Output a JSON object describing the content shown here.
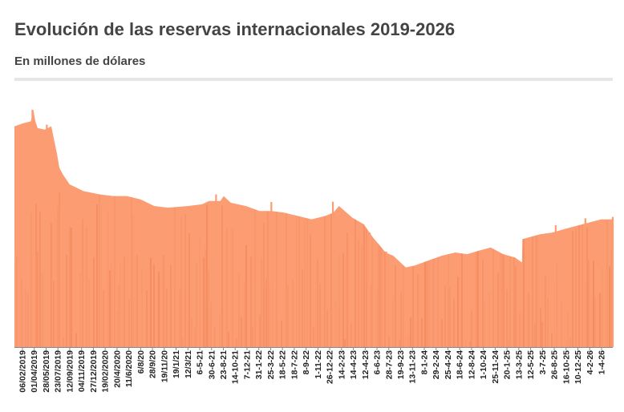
{
  "header": {
    "title": "Evolución de las reservas internacionales 2019-2026",
    "subtitle": "En millones de dólares"
  },
  "chart_data": {
    "type": "area",
    "title": "Evolución de las reservas internacionales 2019-2026",
    "subtitle": "En millones de dólares",
    "xlabel": "",
    "ylabel": "",
    "ylim": [
      0,
      78000
    ],
    "grid": false,
    "legend": "none",
    "colors": {
      "area": "#fb9c73",
      "stripe": "#f07c4c",
      "axis": "#888888"
    },
    "x_range": [
      "2019-02-06",
      "2026-05-22"
    ],
    "x_ticks": [
      "06/02/2019",
      "01/04/2019",
      "28/05/2019",
      "23/07/2019",
      "12/09/2019",
      "04/11/2019",
      "27/12/2019",
      "19/02/2020",
      "20/4/2020",
      "11/6/2020",
      "6/8/20",
      "28/9/20",
      "19/11/20",
      "19/1/21",
      "12/3/21",
      "6-5-21",
      "30-6-21",
      "23-8-21",
      "14-10-21",
      "7-12-21",
      "31-1-22",
      "25-3-22",
      "18-5-22",
      "18-7-22",
      "8-9-22",
      "1-11-22",
      "26-12-22",
      "14-2-23",
      "14-4-23",
      "12-4-23",
      "6-6-23",
      "28-7-23",
      "19-9-23",
      "13-11-23",
      "8-1-24",
      "29-2-24",
      "25-4-24",
      "18-6-24",
      "12-8-24",
      "1-10-24",
      "25-11-24",
      "20-1-25",
      "13-3-25",
      "12-5-25",
      "3-7-25",
      "26-8-25",
      "16-10-25",
      "10-12-25",
      "4-2-26",
      "1-4-26"
    ],
    "x": [
      "2019-02-06",
      "2019-03-20",
      "2019-04-20",
      "2019-05-01",
      "2019-05-10",
      "2019-05-20",
      "2019-06-20",
      "2019-07-20",
      "2019-08-15",
      "2019-08-25",
      "2019-09-10",
      "2019-10-10",
      "2019-11-10",
      "2019-12-10",
      "2020-02-20",
      "2020-04-20",
      "2020-06-20",
      "2020-08-20",
      "2020-10-20",
      "2020-12-20",
      "2021-03-20",
      "2021-05-20",
      "2021-06-20",
      "2021-08-10",
      "2021-08-25",
      "2021-09-25",
      "2021-12-01",
      "2022-02-01",
      "2022-03-25",
      "2022-05-20",
      "2022-07-20",
      "2022-09-20",
      "2022-11-20",
      "2022-12-26",
      "2023-01-20",
      "2023-03-20",
      "2023-05-10",
      "2023-06-20",
      "2023-07-28",
      "2023-08-15",
      "2023-09-19",
      "2023-10-20",
      "2023-11-13",
      "2023-12-20",
      "2024-02-20",
      "2024-04-20",
      "2024-06-20",
      "2024-08-12",
      "2024-10-01",
      "2024-11-25",
      "2025-01-20",
      "2025-03-13",
      "2025-04-13",
      "2025-04-15",
      "2025-05-12",
      "2025-07-03",
      "2025-08-26",
      "2025-10-16",
      "2025-12-10",
      "2026-02-04",
      "2026-04-01",
      "2026-05-22"
    ],
    "values": [
      66500,
      67500,
      68000,
      71500,
      68000,
      66000,
      65500,
      66500,
      58000,
      54000,
      52000,
      49000,
      48000,
      47000,
      46000,
      45500,
      45500,
      44500,
      42500,
      42000,
      42500,
      43000,
      44000,
      44000,
      45500,
      43500,
      42500,
      41000,
      41000,
      40500,
      39500,
      38500,
      39500,
      40500,
      42500,
      39000,
      37000,
      33000,
      30000,
      28500,
      27500,
      25500,
      24000,
      24500,
      26000,
      27500,
      28500,
      28000,
      29000,
      30000,
      28000,
      27000,
      25500,
      32500,
      33000,
      34000,
      34500,
      35500,
      36500,
      37500,
      38500,
      38500
    ],
    "spikes": [
      {
        "date": "2019-04-27",
        "value": 71500
      },
      {
        "date": "2019-06-30",
        "value": 67000
      },
      {
        "date": "2021-07-22",
        "value": 46000
      },
      {
        "date": "2022-03-25",
        "value": 43700
      },
      {
        "date": "2022-12-24",
        "value": 43800
      },
      {
        "date": "2023-06-06",
        "value": 34500
      },
      {
        "date": "2023-08-18",
        "value": 28800
      },
      {
        "date": "2025-09-10",
        "value": 36700
      },
      {
        "date": "2026-01-20",
        "value": 38800
      },
      {
        "date": "2026-05-22",
        "value": 39200
      }
    ]
  }
}
